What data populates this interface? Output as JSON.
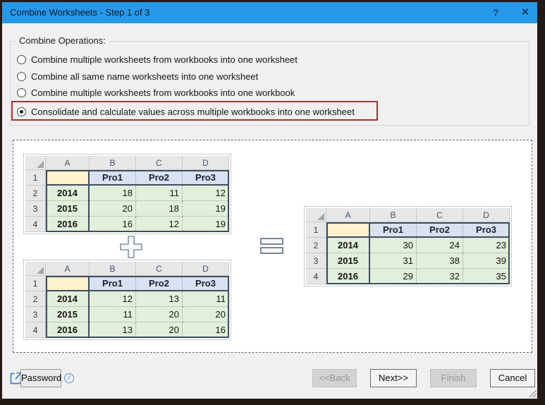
{
  "window": {
    "title": "Combine Worksheets - Step 1 of 3",
    "help_label": "?",
    "close_label": "✕"
  },
  "operations": {
    "group_label": "Combine Operations:",
    "options": [
      {
        "label": "Combine multiple worksheets from workbooks into one worksheet",
        "selected": false
      },
      {
        "label": "Combine all same name worksheets into one worksheet",
        "selected": false
      },
      {
        "label": "Combine multiple worksheets from workbooks into one workbook",
        "selected": false
      },
      {
        "label": "Consolidate and calculate values across multiple workbooks into one worksheet",
        "selected": true,
        "highlighted": true
      }
    ]
  },
  "preview": {
    "plus_icon": "plus",
    "equals_icon": "equals",
    "tables": {
      "source1": {
        "col_headers": [
          "A",
          "B",
          "C",
          "D"
        ],
        "row_headers": [
          "1",
          "2",
          "3",
          "4"
        ],
        "cells": [
          [
            "",
            "Pro1",
            "Pro2",
            "Pro3"
          ],
          [
            "2014",
            "18",
            "11",
            "12"
          ],
          [
            "2015",
            "20",
            "18",
            "19"
          ],
          [
            "2016",
            "16",
            "12",
            "19"
          ]
        ]
      },
      "source2": {
        "col_headers": [
          "A",
          "B",
          "C",
          "D"
        ],
        "row_headers": [
          "1",
          "2",
          "3",
          "4"
        ],
        "cells": [
          [
            "",
            "Pro1",
            "Pro2",
            "Pro3"
          ],
          [
            "2014",
            "12",
            "13",
            "11"
          ],
          [
            "2015",
            "11",
            "20",
            "20"
          ],
          [
            "2016",
            "13",
            "20",
            "16"
          ]
        ]
      },
      "result": {
        "col_headers": [
          "A",
          "B",
          "C",
          "D"
        ],
        "row_headers": [
          "1",
          "2",
          "3",
          "4"
        ],
        "cells": [
          [
            "",
            "Pro1",
            "Pro2",
            "Pro3"
          ],
          [
            "2014",
            "30",
            "24",
            "23"
          ],
          [
            "2015",
            "31",
            "38",
            "39"
          ],
          [
            "2016",
            "29",
            "32",
            "35"
          ]
        ]
      }
    }
  },
  "footer": {
    "password_label": "Password",
    "info_label": "i",
    "back_label": "<<Back",
    "next_label": "Next>>",
    "finish_label": "Finish",
    "cancel_label": "Cancel"
  },
  "colors": {
    "titlebar": "#2799eb",
    "dialog_bg": "#f0f0f0",
    "highlight_red": "#9d3734",
    "cell_year_bg": "#e2efda",
    "cell_header_bg": "#d9e1f2",
    "cell_a1_bg": "#fff2cc",
    "range_border": "#3e4d61",
    "desktop_bg": "#231a16"
  }
}
